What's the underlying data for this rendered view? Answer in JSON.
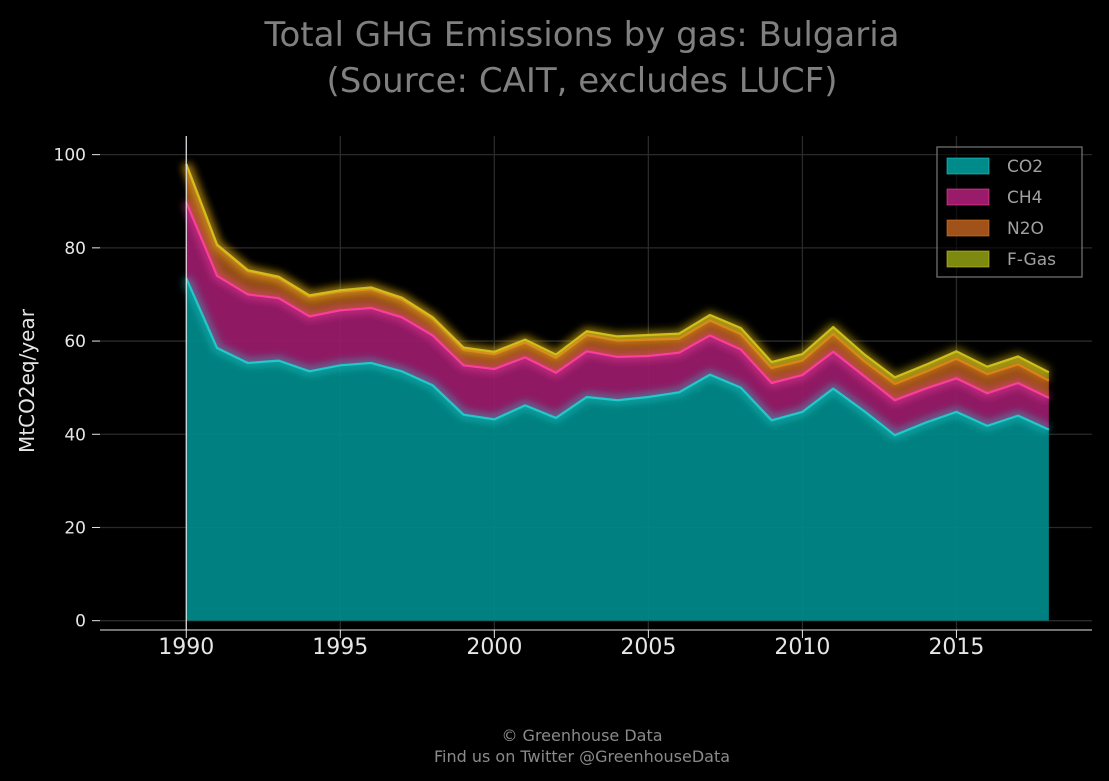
{
  "chart_data": {
    "type": "area",
    "stacked": true,
    "title": "Total GHG Emissions by gas: Bulgaria",
    "subtitle": "(Source: CAIT, excludes LUCF)",
    "xlabel": "",
    "ylabel": "MtCO2eq/year",
    "xlim": [
      1987.2,
      2019.4
    ],
    "ylim": [
      -2,
      104
    ],
    "xticks": [
      1990,
      1995,
      2000,
      2005,
      2010,
      2015
    ],
    "yticks": [
      0,
      20,
      40,
      60,
      80,
      100
    ],
    "grid": true,
    "legend_position": "top-right",
    "x": [
      1990,
      1991,
      1992,
      1993,
      1994,
      1995,
      1996,
      1997,
      1998,
      1999,
      2000,
      2001,
      2002,
      2003,
      2004,
      2005,
      2006,
      2007,
      2008,
      2009,
      2010,
      2011,
      2012,
      2013,
      2014,
      2015,
      2016,
      2017,
      2018
    ],
    "series": [
      {
        "name": "CO2",
        "color": "#008b8b",
        "line_color": "#22cccc",
        "values": [
          73.5,
          58.5,
          55.3,
          55.8,
          53.5,
          54.8,
          55.3,
          53.5,
          50.5,
          44.2,
          43.2,
          46.2,
          43.5,
          48.0,
          47.3,
          48.0,
          49.0,
          52.8,
          50.0,
          43.0,
          44.8,
          49.8,
          45.0,
          39.8,
          42.5,
          44.8,
          41.8,
          44.0,
          41.0
        ]
      },
      {
        "name": "CH4",
        "color": "#9b1b6b",
        "line_color": "#ff3fa0",
        "values": [
          16.3,
          15.5,
          14.7,
          13.4,
          11.8,
          11.8,
          11.8,
          11.6,
          10.7,
          10.6,
          10.8,
          10.3,
          9.7,
          9.8,
          9.3,
          8.8,
          8.5,
          8.4,
          8.2,
          8.0,
          7.9,
          7.9,
          7.5,
          7.5,
          7.3,
          7.2,
          7.0,
          7.0,
          6.8
        ]
      },
      {
        "name": "N2O",
        "color": "#a0521a",
        "line_color": "#e07a1a",
        "values": [
          8.0,
          6.5,
          5.0,
          4.3,
          4.2,
          4.0,
          4.0,
          3.8,
          3.5,
          3.3,
          3.2,
          3.2,
          3.2,
          3.5,
          3.5,
          3.5,
          3.0,
          3.2,
          3.3,
          3.2,
          3.1,
          3.8,
          3.2,
          3.5,
          3.6,
          4.2,
          4.1,
          4.0,
          3.7
        ]
      },
      {
        "name": "F-Gas",
        "color": "#7d8a10",
        "line_color": "#d4c21a",
        "values": [
          0.2,
          0.2,
          0.2,
          0.3,
          0.3,
          0.3,
          0.4,
          0.4,
          0.4,
          0.5,
          0.5,
          0.6,
          0.7,
          0.8,
          0.9,
          1.0,
          1.1,
          1.2,
          1.3,
          1.3,
          1.4,
          1.5,
          1.5,
          1.4,
          1.5,
          1.6,
          1.6,
          1.7,
          1.8
        ]
      }
    ]
  },
  "footer": {
    "line1": "© Greenhouse Data",
    "line2": "Find us on Twitter @GreenhouseData"
  }
}
